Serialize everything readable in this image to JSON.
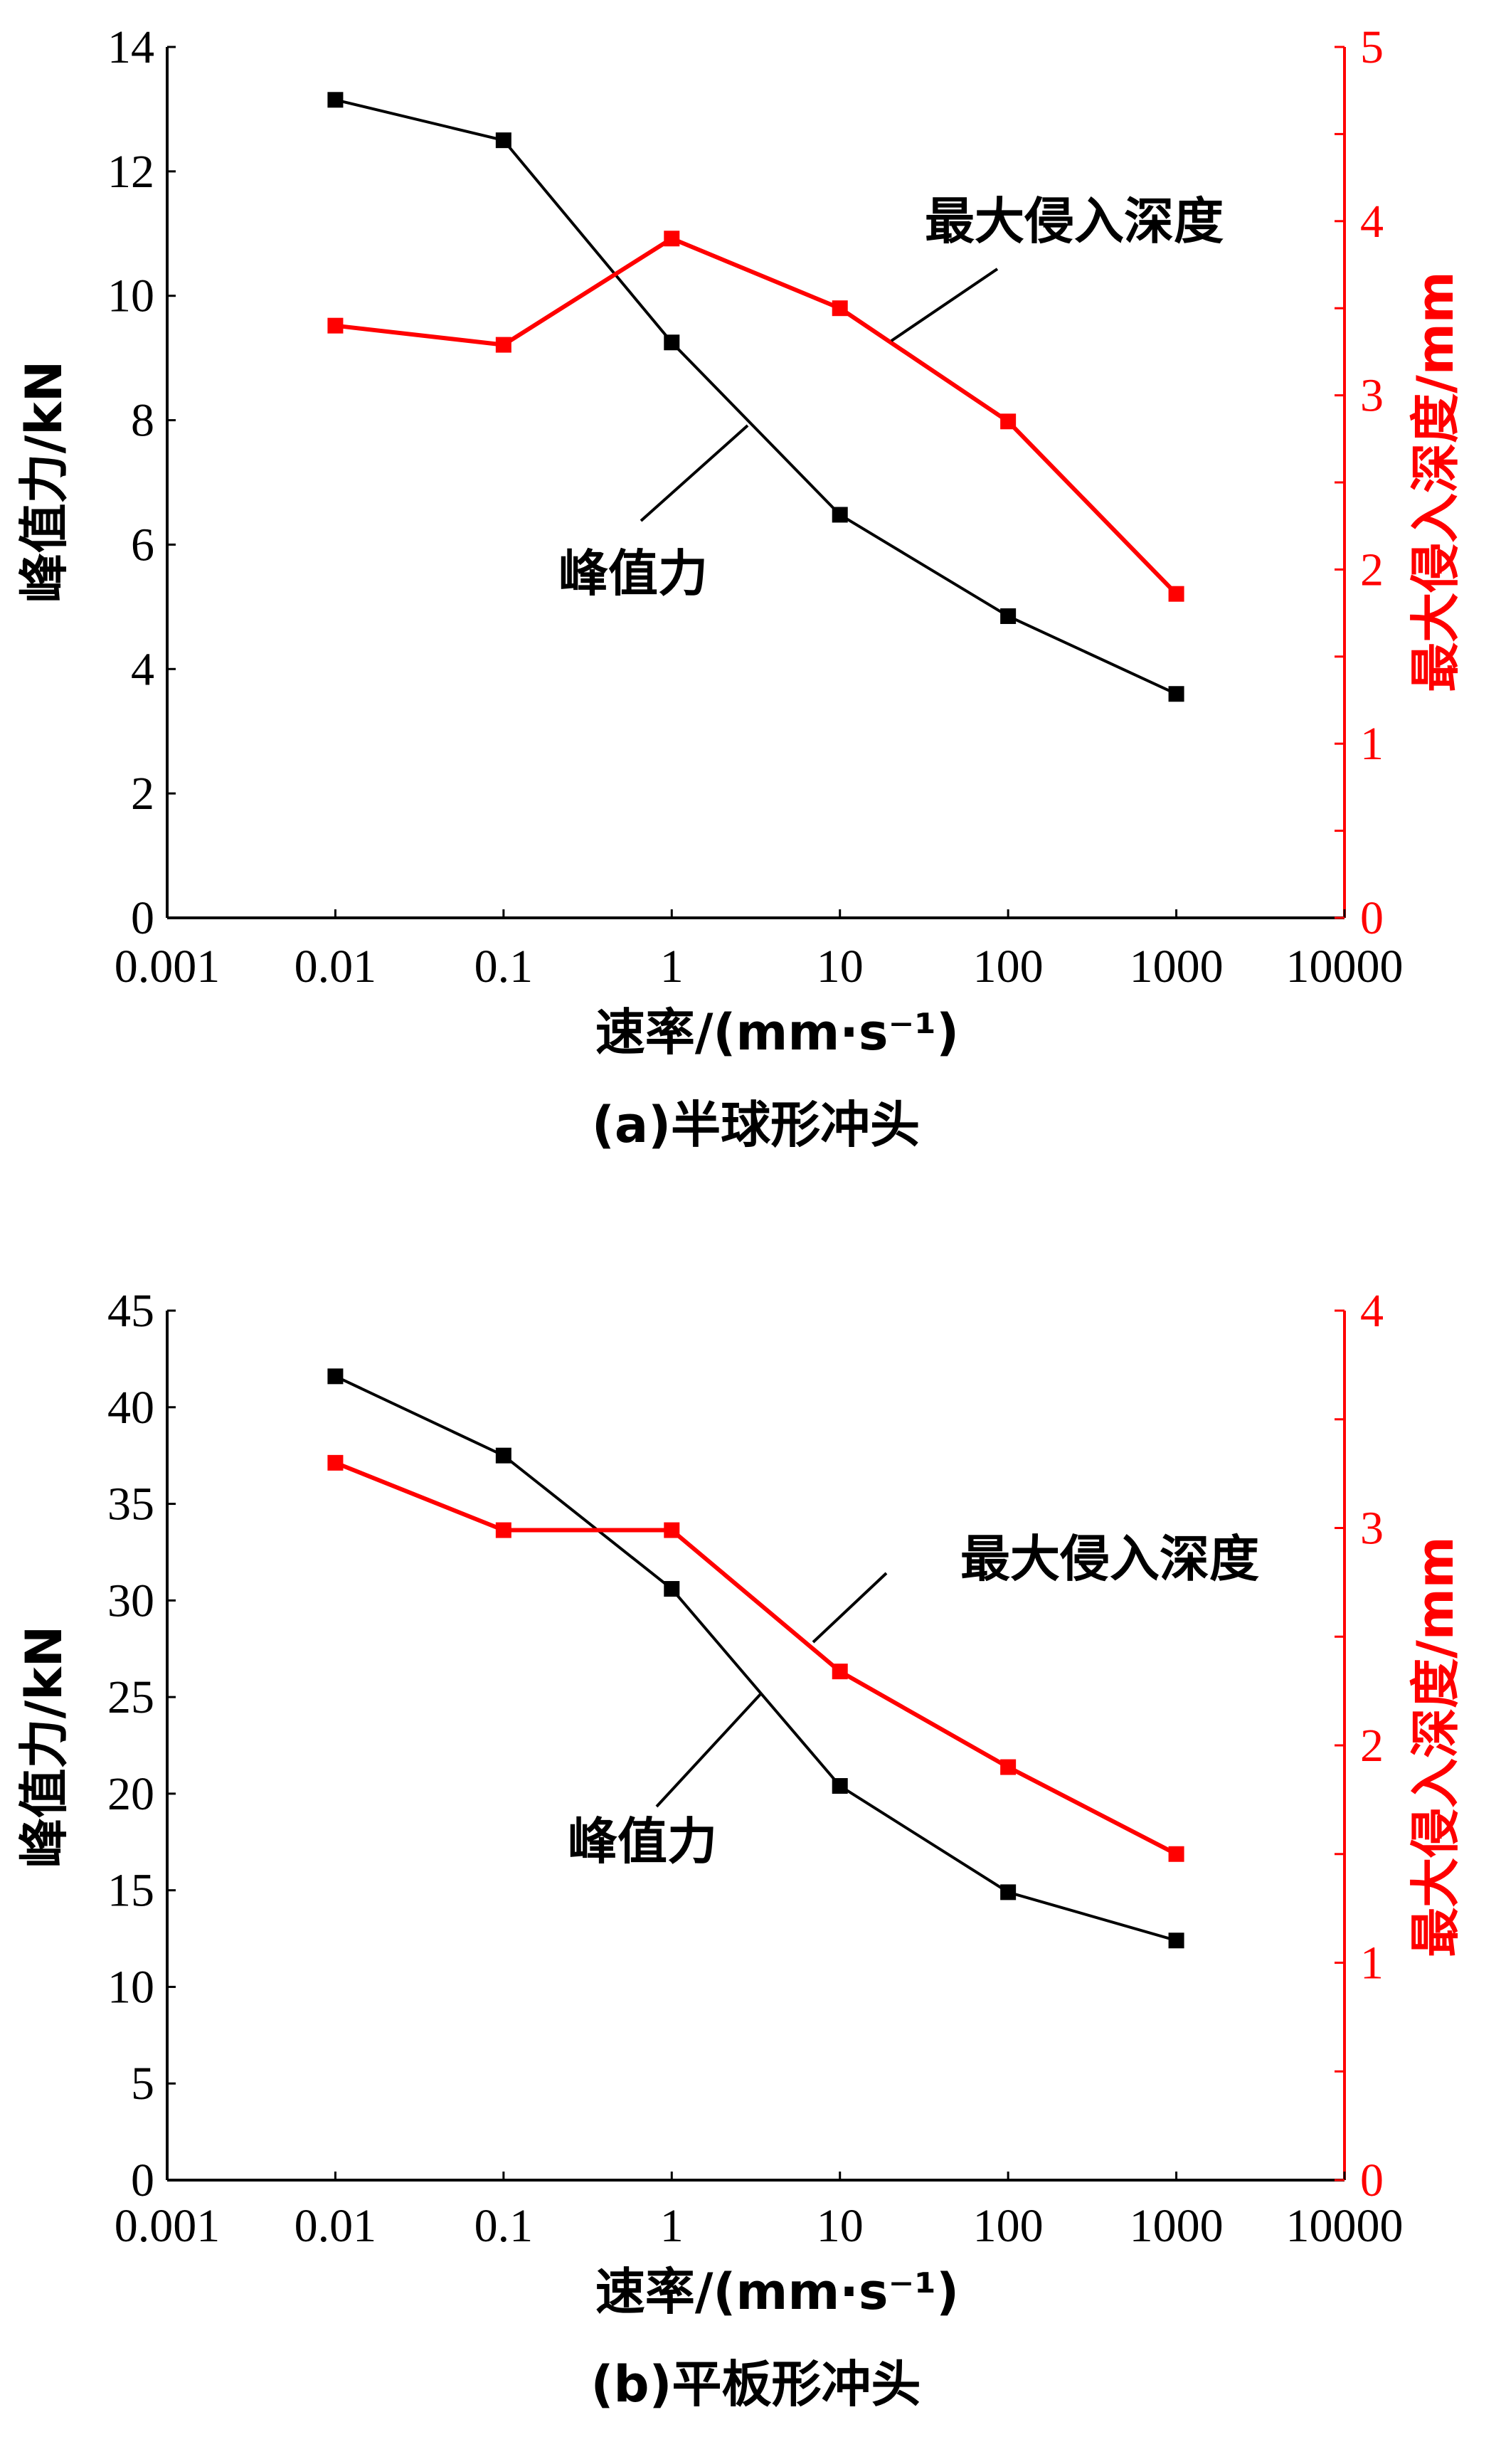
{
  "colors": {
    "force": "#000000",
    "depth": "#ff0000"
  },
  "chart_data": [
    {
      "type": "line",
      "caption": "(a)半球形冲头",
      "xlabel": "速率/(mm·s⁻¹)",
      "x_scale": "log",
      "xlim": [
        0.001,
        10000
      ],
      "x_ticks": [
        "0.001",
        "0.01",
        "0.1",
        "1",
        "10",
        "100",
        "1000",
        "10000"
      ],
      "ylabel_left": "峰值力/kN",
      "ylim_left": [
        0,
        14
      ],
      "y_ticks_left": [
        "0",
        "2",
        "4",
        "6",
        "8",
        "10",
        "12",
        "14"
      ],
      "ylabel_right": "最大侵入深度/mm",
      "ylim_right": [
        0,
        5
      ],
      "y_ticks_right": [
        "0",
        "1",
        "2",
        "3",
        "4",
        "5"
      ],
      "x": [
        0.01,
        0.1,
        1,
        10,
        100,
        1000
      ],
      "series": [
        {
          "name": "峰值力",
          "axis": "left",
          "values": [
            13.15,
            12.5,
            9.25,
            6.48,
            4.85,
            3.6
          ]
        },
        {
          "name": "最大侵入深度",
          "axis": "right",
          "values": [
            3.4,
            3.29,
            3.9,
            3.5,
            2.85,
            1.86
          ]
        }
      ],
      "annotations": [
        "最大侵入深度",
        "峰值力"
      ]
    },
    {
      "type": "line",
      "caption": "(b)平板形冲头",
      "xlabel": "速率/(mm·s⁻¹)",
      "x_scale": "log",
      "xlim": [
        0.001,
        10000
      ],
      "x_ticks": [
        "0.001",
        "0.01",
        "0.1",
        "1",
        "10",
        "100",
        "1000",
        "10000"
      ],
      "ylabel_left": "峰值力/kN",
      "ylim_left": [
        0,
        45
      ],
      "y_ticks_left": [
        "0",
        "5",
        "10",
        "15",
        "20",
        "25",
        "30",
        "35",
        "40",
        "45"
      ],
      "ylabel_right": "最大侵入深度/mm",
      "ylim_right": [
        0,
        4
      ],
      "y_ticks_right": [
        "0",
        "1",
        "2",
        "3",
        "4"
      ],
      "x": [
        0.01,
        0.1,
        1,
        10,
        100,
        1000
      ],
      "series": [
        {
          "name": "峰值力",
          "axis": "left",
          "values": [
            41.6,
            37.5,
            30.6,
            20.4,
            14.9,
            12.4
          ]
        },
        {
          "name": "最大侵入深度",
          "axis": "right",
          "values": [
            3.3,
            2.99,
            2.99,
            2.34,
            1.9,
            1.5
          ]
        }
      ],
      "annotations": [
        "最大侵入深度",
        "峰值力"
      ]
    }
  ]
}
